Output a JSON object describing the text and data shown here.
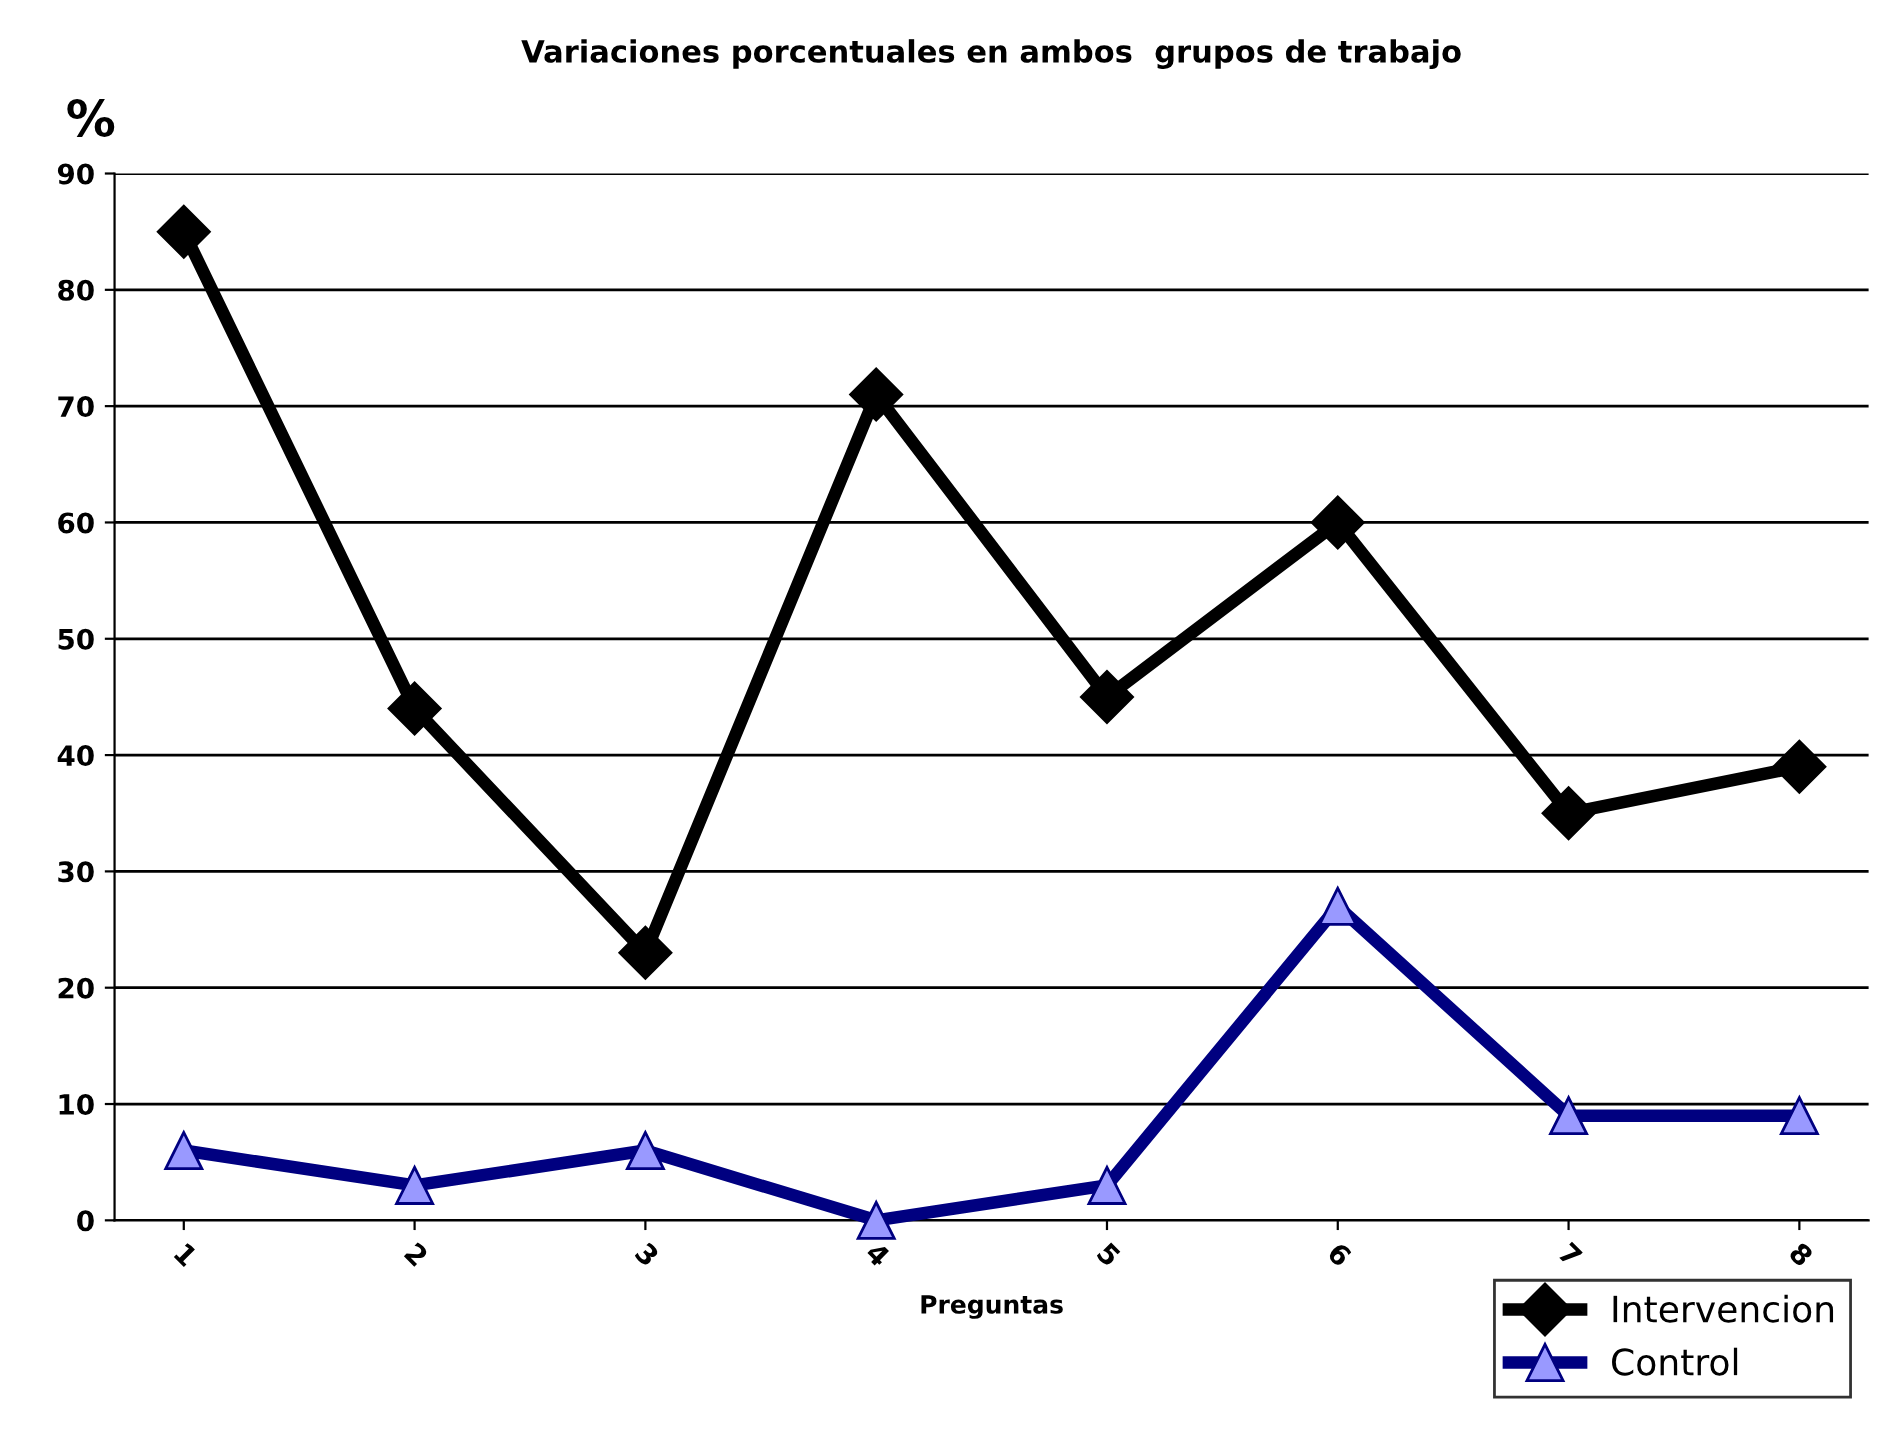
{
  "chart_data": {
    "type": "line",
    "title": "Variaciones porcentuales en ambos  grupos de trabajo",
    "xlabel": "Preguntas",
    "ylabel": "%",
    "categories": [
      "1",
      "2",
      "3",
      "4",
      "5",
      "6",
      "7",
      "8"
    ],
    "series": [
      {
        "name": "Intervencion",
        "color": "#000000",
        "marker": "diamond",
        "values": [
          85,
          44,
          23,
          71,
          45,
          60,
          35,
          39
        ]
      },
      {
        "name": "Control",
        "color": "#000080",
        "marker": "triangle",
        "values": [
          6,
          3,
          6,
          0,
          3,
          27,
          9,
          9
        ]
      }
    ],
    "ylim": [
      0,
      90
    ],
    "yticks": [
      0,
      10,
      20,
      30,
      40,
      50,
      60,
      70,
      80,
      90
    ],
    "grid": "y",
    "legend": "bottom right",
    "line_style": "solid"
  }
}
